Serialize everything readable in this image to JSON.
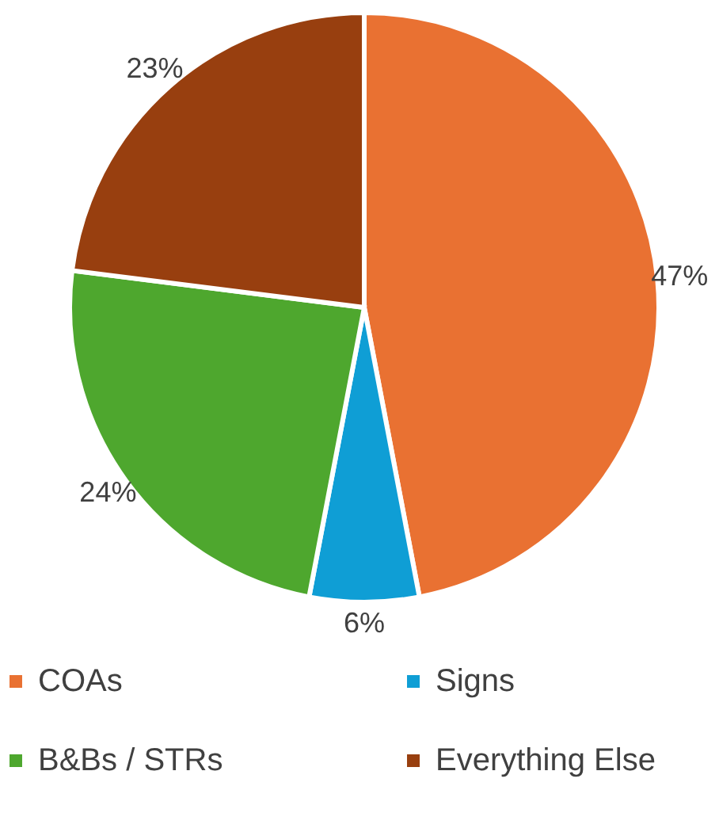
{
  "chart_data": {
    "type": "pie",
    "categories": [
      "COAs",
      "Signs",
      "B&Bs / STRs",
      "Everything Else"
    ],
    "values": [
      47,
      6,
      24,
      23
    ],
    "value_labels": [
      "47%",
      "6%",
      "24%",
      "23%"
    ],
    "colors": [
      "#e97132",
      "#0f9ed5",
      "#4ea72e",
      "#983f0f"
    ],
    "legend": "bottom"
  }
}
